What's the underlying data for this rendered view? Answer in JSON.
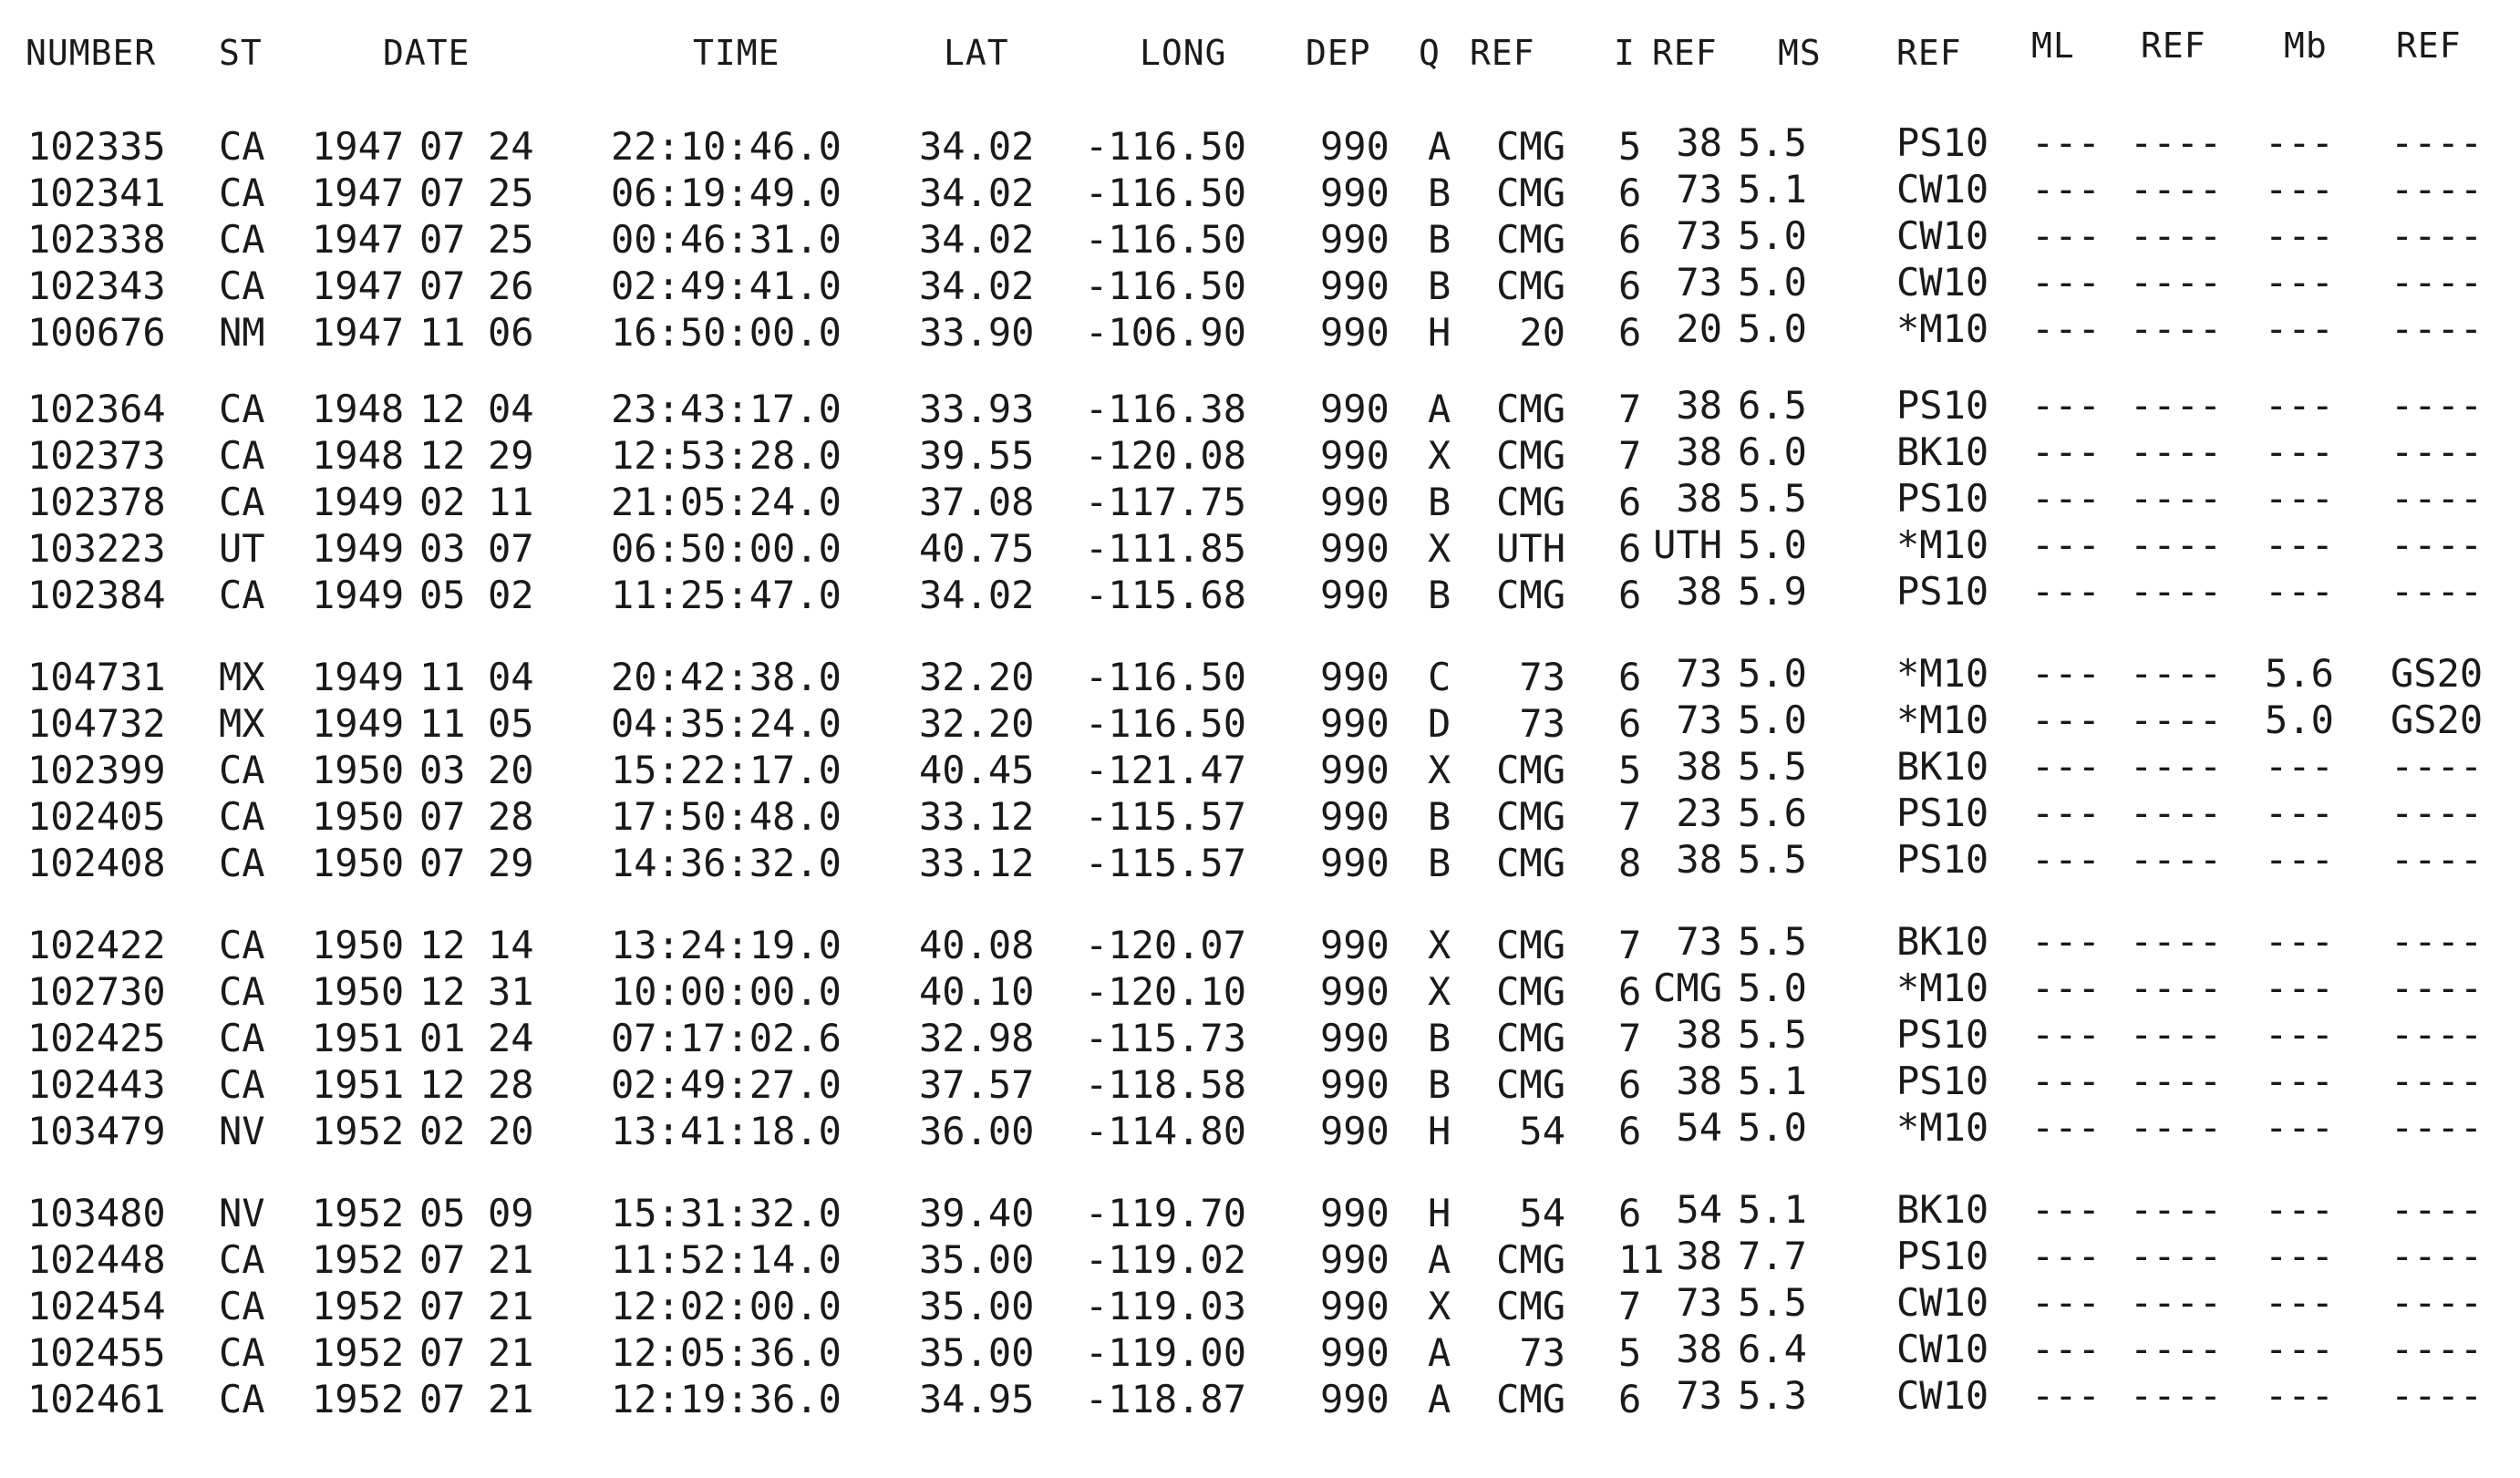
{
  "columns": [
    {
      "key": "number",
      "label": "NUMBER"
    },
    {
      "key": "st",
      "label": "ST"
    },
    {
      "key": "date",
      "label": "DATE"
    },
    {
      "key": "time",
      "label": "TIME"
    },
    {
      "key": "lat",
      "label": "LAT"
    },
    {
      "key": "long",
      "label": "LONG"
    },
    {
      "key": "dep",
      "label": "DEP"
    },
    {
      "key": "q",
      "label": "Q"
    },
    {
      "key": "ref1",
      "label": "REF"
    },
    {
      "key": "i",
      "label": "I"
    },
    {
      "key": "ref2",
      "label": "REF"
    },
    {
      "key": "ms",
      "label": "MS"
    },
    {
      "key": "ref3",
      "label": "REF"
    },
    {
      "key": "ml",
      "label": "ML"
    },
    {
      "key": "ref4",
      "label": "REF"
    },
    {
      "key": "mb",
      "label": "Mb"
    },
    {
      "key": "ref5",
      "label": "REF"
    }
  ],
  "groups": [
    {
      "rows": [
        [
          "102335",
          "CA",
          "1947",
          "07",
          "24",
          "22:10:46.0",
          "34.02",
          "-116.50",
          "990",
          "A",
          "CMG",
          "5",
          "38",
          "5.5",
          "PS10",
          "---",
          "----",
          "---",
          "----"
        ],
        [
          "102341",
          "CA",
          "1947",
          "07",
          "25",
          "06:19:49.0",
          "34.02",
          "-116.50",
          "990",
          "B",
          "CMG",
          "6",
          "73",
          "5.1",
          "CW10",
          "---",
          "----",
          "---",
          "----"
        ],
        [
          "102338",
          "CA",
          "1947",
          "07",
          "25",
          "00:46:31.0",
          "34.02",
          "-116.50",
          "990",
          "B",
          "CMG",
          "6",
          "73",
          "5.0",
          "CW10",
          "---",
          "----",
          "---",
          "----"
        ],
        [
          "102343",
          "CA",
          "1947",
          "07",
          "26",
          "02:49:41.0",
          "34.02",
          "-116.50",
          "990",
          "B",
          "CMG",
          "6",
          "73",
          "5.0",
          "CW10",
          "---",
          "----",
          "---",
          "----"
        ],
        [
          "100676",
          "NM",
          "1947",
          "11",
          "06",
          "16:50:00.0",
          "33.90",
          "-106.90",
          "990",
          "H",
          "20",
          "6",
          "20",
          "5.0",
          "*M10",
          "---",
          "----",
          "---",
          "----"
        ]
      ]
    },
    {
      "rows": [
        [
          "102364",
          "CA",
          "1948",
          "12",
          "04",
          "23:43:17.0",
          "33.93",
          "-116.38",
          "990",
          "A",
          "CMG",
          "7",
          "38",
          "6.5",
          "PS10",
          "---",
          "----",
          "---",
          "----"
        ],
        [
          "102373",
          "CA",
          "1948",
          "12",
          "29",
          "12:53:28.0",
          "39.55",
          "-120.08",
          "990",
          "X",
          "CMG",
          "7",
          "38",
          "6.0",
          "BK10",
          "---",
          "----",
          "---",
          "----"
        ],
        [
          "102378",
          "CA",
          "1949",
          "02",
          "11",
          "21:05:24.0",
          "37.08",
          "-117.75",
          "990",
          "B",
          "CMG",
          "6",
          "38",
          "5.5",
          "PS10",
          "---",
          "----",
          "---",
          "----"
        ],
        [
          "103223",
          "UT",
          "1949",
          "03",
          "07",
          "06:50:00.0",
          "40.75",
          "-111.85",
          "990",
          "X",
          "UTH",
          "6",
          "UTH",
          "5.0",
          "*M10",
          "---",
          "----",
          "---",
          "----"
        ],
        [
          "102384",
          "CA",
          "1949",
          "05",
          "02",
          "11:25:47.0",
          "34.02",
          "-115.68",
          "990",
          "B",
          "CMG",
          "6",
          "38",
          "5.9",
          "PS10",
          "---",
          "----",
          "---",
          "----"
        ]
      ]
    },
    {
      "rows": [
        [
          "104731",
          "MX",
          "1949",
          "11",
          "04",
          "20:42:38.0",
          "32.20",
          "-116.50",
          "990",
          "C",
          "73",
          "6",
          "73",
          "5.0",
          "*M10",
          "---",
          "----",
          "5.6",
          "GS20"
        ],
        [
          "104732",
          "MX",
          "1949",
          "11",
          "05",
          "04:35:24.0",
          "32.20",
          "-116.50",
          "990",
          "D",
          "73",
          "6",
          "73",
          "5.0",
          "*M10",
          "---",
          "----",
          "5.0",
          "GS20"
        ],
        [
          "102399",
          "CA",
          "1950",
          "03",
          "20",
          "15:22:17.0",
          "40.45",
          "-121.47",
          "990",
          "X",
          "CMG",
          "5",
          "38",
          "5.5",
          "BK10",
          "---",
          "----",
          "---",
          "----"
        ],
        [
          "102405",
          "CA",
          "1950",
          "07",
          "28",
          "17:50:48.0",
          "33.12",
          "-115.57",
          "990",
          "B",
          "CMG",
          "7",
          "23",
          "5.6",
          "PS10",
          "---",
          "----",
          "---",
          "----"
        ],
        [
          "102408",
          "CA",
          "1950",
          "07",
          "29",
          "14:36:32.0",
          "33.12",
          "-115.57",
          "990",
          "B",
          "CMG",
          "8",
          "38",
          "5.5",
          "PS10",
          "---",
          "----",
          "---",
          "----"
        ]
      ]
    },
    {
      "rows": [
        [
          "102422",
          "CA",
          "1950",
          "12",
          "14",
          "13:24:19.0",
          "40.08",
          "-120.07",
          "990",
          "X",
          "CMG",
          "7",
          "73",
          "5.5",
          "BK10",
          "---",
          "----",
          "---",
          "----"
        ],
        [
          "102730",
          "CA",
          "1950",
          "12",
          "31",
          "10:00:00.0",
          "40.10",
          "-120.10",
          "990",
          "X",
          "CMG",
          "6",
          "CMG",
          "5.0",
          "*M10",
          "---",
          "----",
          "---",
          "----"
        ],
        [
          "102425",
          "CA",
          "1951",
          "01",
          "24",
          "07:17:02.6",
          "32.98",
          "-115.73",
          "990",
          "B",
          "CMG",
          "7",
          "38",
          "5.5",
          "PS10",
          "---",
          "----",
          "---",
          "----"
        ],
        [
          "102443",
          "CA",
          "1951",
          "12",
          "28",
          "02:49:27.0",
          "37.57",
          "-118.58",
          "990",
          "B",
          "CMG",
          "6",
          "38",
          "5.1",
          "PS10",
          "---",
          "----",
          "---",
          "----"
        ],
        [
          "103479",
          "NV",
          "1952",
          "02",
          "20",
          "13:41:18.0",
          "36.00",
          "-114.80",
          "990",
          "H",
          "54",
          "6",
          "54",
          "5.0",
          "*M10",
          "---",
          "----",
          "---",
          "----"
        ]
      ]
    },
    {
      "rows": [
        [
          "103480",
          "NV",
          "1952",
          "05",
          "09",
          "15:31:32.0",
          "39.40",
          "-119.70",
          "990",
          "H",
          "54",
          "6",
          "54",
          "5.1",
          "BK10",
          "---",
          "----",
          "---",
          "----"
        ],
        [
          "102448",
          "CA",
          "1952",
          "07",
          "21",
          "11:52:14.0",
          "35.00",
          "-119.02",
          "990",
          "A",
          "CMG",
          "11",
          "38",
          "7.7",
          "PS10",
          "---",
          "----",
          "---",
          "----"
        ],
        [
          "102454",
          "CA",
          "1952",
          "07",
          "21",
          "12:02:00.0",
          "35.00",
          "-119.03",
          "990",
          "X",
          "CMG",
          "7",
          "73",
          "5.5",
          "CW10",
          "---",
          "----",
          "---",
          "----"
        ],
        [
          "102455",
          "CA",
          "1952",
          "07",
          "21",
          "12:05:36.0",
          "35.00",
          "-119.00",
          "990",
          "A",
          "73",
          "5",
          "38",
          "6.4",
          "CW10",
          "---",
          "----",
          "---",
          "----"
        ],
        [
          "102461",
          "CA",
          "1952",
          "07",
          "21",
          "12:19:36.0",
          "34.95",
          "-118.87",
          "990",
          "A",
          "CMG",
          "6",
          "73",
          "5.3",
          "CW10",
          "---",
          "----",
          "---",
          "----"
        ]
      ]
    }
  ]
}
